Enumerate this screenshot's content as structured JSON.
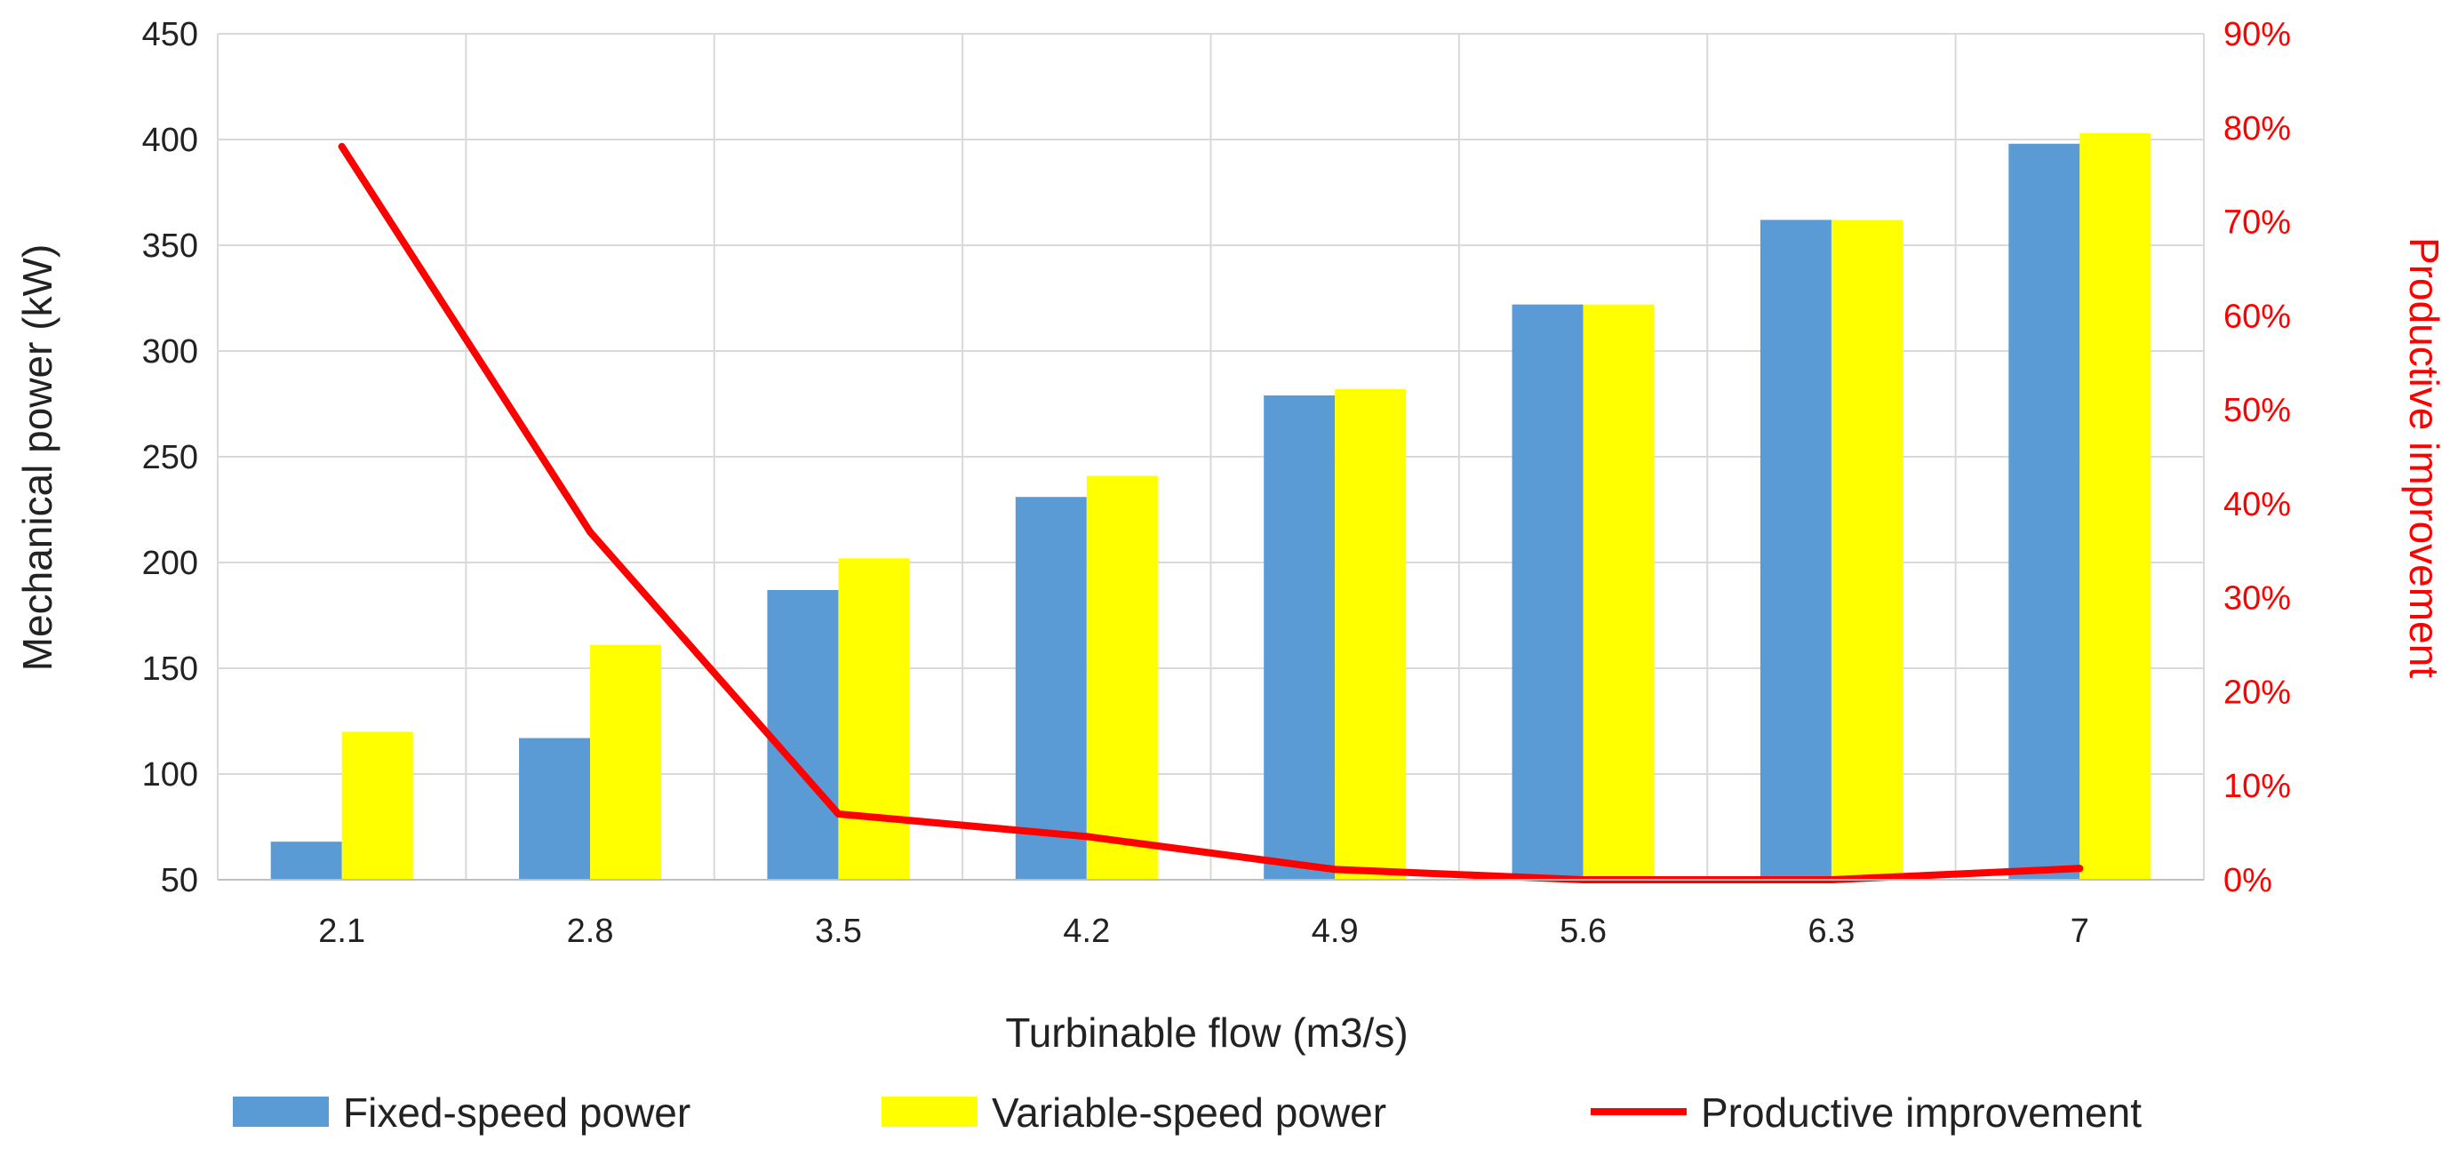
{
  "chart_data": {
    "type": "bar",
    "categories": [
      "2.1",
      "2.8",
      "3.5",
      "4.2",
      "4.9",
      "5.6",
      "6.3",
      "7"
    ],
    "series": [
      {
        "name": "Fixed-speed power",
        "kind": "bar",
        "axis": "left",
        "color": "#5b9bd5",
        "values": [
          68,
          117,
          187,
          231,
          279,
          322,
          362,
          398
        ]
      },
      {
        "name": "Variable-speed power",
        "kind": "bar",
        "axis": "left",
        "color": "#ffff00",
        "values": [
          120,
          161,
          202,
          241,
          282,
          322,
          362,
          403
        ]
      },
      {
        "name": "Productive improvement",
        "kind": "line",
        "axis": "right",
        "color": "#ff0000",
        "values": [
          0.78,
          0.37,
          0.07,
          0.046,
          0.011,
          0.0,
          0.0,
          0.012
        ]
      }
    ],
    "xlabel": "Turbinable flow (m3/s)",
    "ylabel": "Mechanical power (kW)",
    "ylabel_right": "Productive improvement",
    "ylim": [
      50,
      450
    ],
    "yticks": [
      "50",
      "100",
      "150",
      "200",
      "250",
      "300",
      "350",
      "400",
      "450"
    ],
    "ylim_right": [
      0,
      0.9
    ],
    "yticks_right": [
      "0%",
      "10%",
      "20%",
      "30%",
      "40%",
      "50%",
      "60%",
      "70%",
      "80%",
      "90%"
    ],
    "right_axis_color": "#ff0000",
    "grid": true,
    "legend_position": "bottom"
  }
}
